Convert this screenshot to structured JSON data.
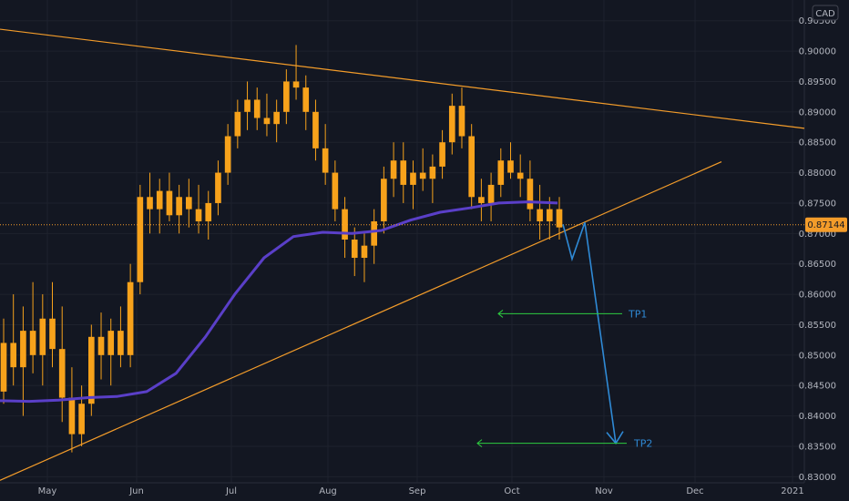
{
  "chart_data": {
    "type": "candlestick",
    "currency": "CAD",
    "x_labels": [
      "May",
      "Jun",
      "Jul",
      "Aug",
      "Sep",
      "Oct",
      "Nov",
      "Dec",
      "2021"
    ],
    "y_ticks": [
      "0.90500",
      "0.90000",
      "0.89500",
      "0.89000",
      "0.88500",
      "0.88000",
      "0.87500",
      "0.87000",
      "0.86500",
      "0.86000",
      "0.85500",
      "0.85000",
      "0.84500",
      "0.84000",
      "0.83500",
      "0.83000"
    ],
    "ylim": [
      0.829,
      0.9084
    ],
    "current_price": "0.87144",
    "series": [
      {
        "name": "price",
        "values": [
          [
            0.844,
            0.856,
            0.842,
            0.852
          ],
          [
            0.852,
            0.86,
            0.845,
            0.848
          ],
          [
            0.848,
            0.858,
            0.84,
            0.854
          ],
          [
            0.854,
            0.862,
            0.847,
            0.85
          ],
          [
            0.85,
            0.86,
            0.845,
            0.856
          ],
          [
            0.856,
            0.862,
            0.848,
            0.851
          ],
          [
            0.851,
            0.858,
            0.839,
            0.843
          ],
          [
            0.843,
            0.848,
            0.834,
            0.837
          ],
          [
            0.837,
            0.845,
            0.835,
            0.842
          ],
          [
            0.842,
            0.855,
            0.84,
            0.853
          ],
          [
            0.853,
            0.857,
            0.846,
            0.85
          ],
          [
            0.85,
            0.856,
            0.845,
            0.854
          ],
          [
            0.854,
            0.858,
            0.848,
            0.85
          ],
          [
            0.85,
            0.865,
            0.848,
            0.862
          ],
          [
            0.862,
            0.878,
            0.86,
            0.876
          ],
          [
            0.876,
            0.88,
            0.87,
            0.874
          ],
          [
            0.874,
            0.879,
            0.87,
            0.877
          ],
          [
            0.877,
            0.88,
            0.872,
            0.873
          ],
          [
            0.873,
            0.878,
            0.87,
            0.876
          ],
          [
            0.876,
            0.879,
            0.871,
            0.874
          ],
          [
            0.874,
            0.878,
            0.87,
            0.872
          ],
          [
            0.872,
            0.877,
            0.869,
            0.875
          ],
          [
            0.875,
            0.882,
            0.873,
            0.88
          ],
          [
            0.88,
            0.888,
            0.878,
            0.886
          ],
          [
            0.886,
            0.892,
            0.884,
            0.89
          ],
          [
            0.89,
            0.895,
            0.887,
            0.892
          ],
          [
            0.892,
            0.894,
            0.887,
            0.889
          ],
          [
            0.889,
            0.893,
            0.886,
            0.888
          ],
          [
            0.888,
            0.892,
            0.885,
            0.89
          ],
          [
            0.89,
            0.897,
            0.888,
            0.895
          ],
          [
            0.895,
            0.901,
            0.892,
            0.894
          ],
          [
            0.894,
            0.896,
            0.887,
            0.89
          ],
          [
            0.89,
            0.892,
            0.882,
            0.884
          ],
          [
            0.884,
            0.888,
            0.878,
            0.88
          ],
          [
            0.88,
            0.882,
            0.872,
            0.874
          ],
          [
            0.874,
            0.876,
            0.866,
            0.869
          ],
          [
            0.869,
            0.871,
            0.863,
            0.866
          ],
          [
            0.866,
            0.87,
            0.862,
            0.868
          ],
          [
            0.868,
            0.874,
            0.865,
            0.872
          ],
          [
            0.872,
            0.881,
            0.87,
            0.879
          ],
          [
            0.879,
            0.885,
            0.876,
            0.882
          ],
          [
            0.882,
            0.885,
            0.875,
            0.878
          ],
          [
            0.878,
            0.882,
            0.874,
            0.88
          ],
          [
            0.88,
            0.884,
            0.877,
            0.879
          ],
          [
            0.879,
            0.883,
            0.875,
            0.881
          ],
          [
            0.881,
            0.887,
            0.879,
            0.885
          ],
          [
            0.885,
            0.893,
            0.883,
            0.891
          ],
          [
            0.891,
            0.894,
            0.884,
            0.886
          ],
          [
            0.886,
            0.888,
            0.874,
            0.876
          ],
          [
            0.876,
            0.879,
            0.872,
            0.875
          ],
          [
            0.875,
            0.88,
            0.872,
            0.878
          ],
          [
            0.878,
            0.884,
            0.876,
            0.882
          ],
          [
            0.882,
            0.885,
            0.879,
            0.88
          ],
          [
            0.88,
            0.883,
            0.876,
            0.879
          ],
          [
            0.879,
            0.882,
            0.872,
            0.874
          ],
          [
            0.874,
            0.878,
            0.869,
            0.872
          ],
          [
            0.872,
            0.876,
            0.869,
            0.874
          ],
          [
            0.874,
            0.876,
            0.869,
            0.871
          ]
        ]
      },
      {
        "name": "moving_average",
        "values": [
          0.8425,
          0.8424,
          0.8426,
          0.843,
          0.8432,
          0.844,
          0.847,
          0.853,
          0.86,
          0.866,
          0.8695,
          0.8702,
          0.87,
          0.8705,
          0.8722,
          0.8735,
          0.8742,
          0.875,
          0.8752,
          0.875
        ]
      }
    ],
    "annotations": {
      "tp1_label": "TP1",
      "tp1_price": 0.8568,
      "tp2_label": "TP2",
      "tp2_price": 0.8355,
      "resistance_line": [
        [
          0,
          0.9036
        ],
        [
          1,
          0.8873
        ]
      ],
      "support_line": [
        [
          0,
          0.8294
        ],
        [
          1,
          0.8818
        ]
      ],
      "projected_path": [
        0.8715,
        0.8658,
        0.8718,
        0.8355
      ]
    }
  }
}
